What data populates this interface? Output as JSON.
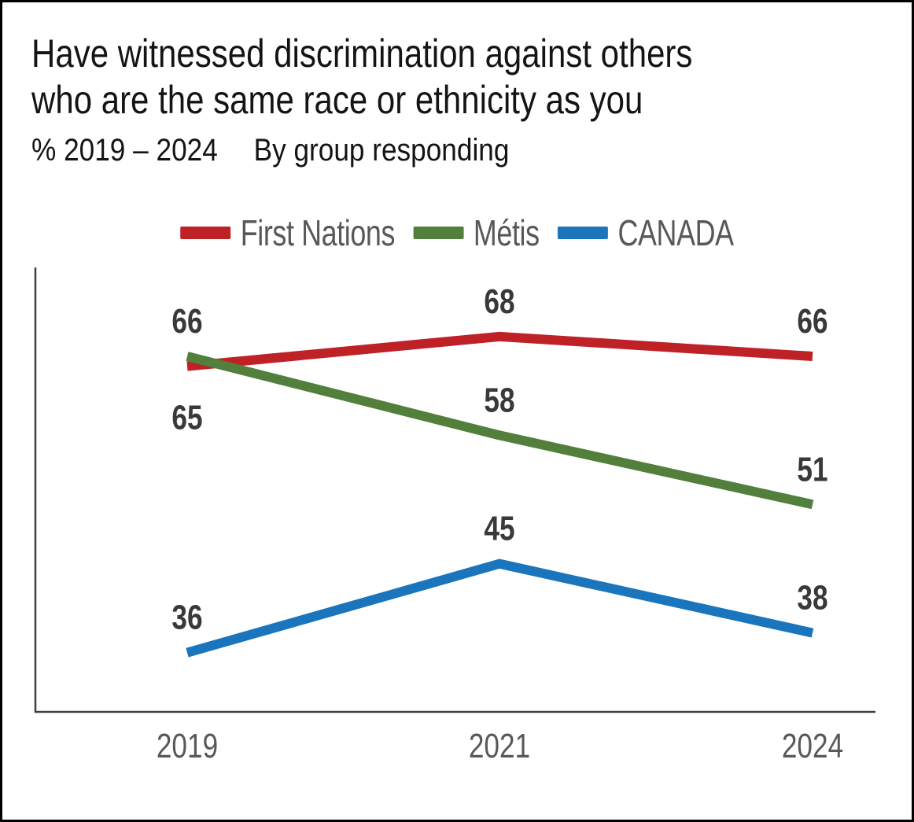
{
  "header": {
    "title_line1": "Have witnessed discrimination against others",
    "title_line2": "who are the same race or ethnicity as you",
    "subtitle_range": "% 2019 – 2024",
    "subtitle_group": "By group responding"
  },
  "colors": {
    "first_nations": "#BE2126",
    "metis": "#527F3C",
    "canada": "#1B75BC",
    "data_label": "#39393B",
    "axis": "#404040",
    "tick_label": "#58585A"
  },
  "chart_data": {
    "type": "line",
    "title": "Have witnessed discrimination against others who are the same race or ethnicity as you",
    "subtitle": "% 2019 – 2024  By group responding",
    "categories": [
      "2019",
      "2021",
      "2024"
    ],
    "series": [
      {
        "name": "First Nations",
        "color": "#BE2126",
        "values": [
          65,
          68,
          66
        ]
      },
      {
        "name": "Métis",
        "color": "#527F3C",
        "values": [
          66,
          58,
          51
        ]
      },
      {
        "name": "CANADA",
        "color": "#1B75BC",
        "values": [
          36,
          45,
          38
        ]
      }
    ],
    "xlabel": "",
    "ylabel": "",
    "ylim": [
      30,
      75
    ],
    "grid": false,
    "legend_position": "top",
    "data_labels_shown": true
  }
}
